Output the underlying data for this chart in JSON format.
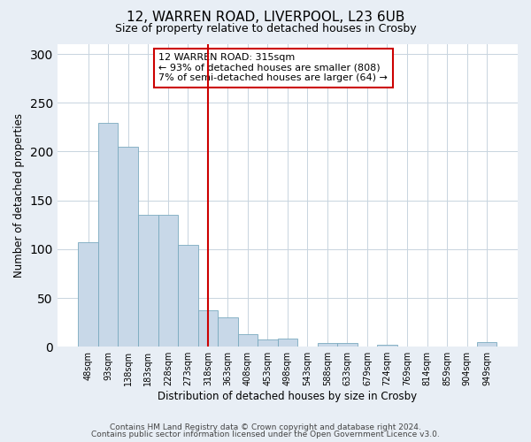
{
  "title1": "12, WARREN ROAD, LIVERPOOL, L23 6UB",
  "title2": "Size of property relative to detached houses in Crosby",
  "xlabel": "Distribution of detached houses by size in Crosby",
  "ylabel": "Number of detached properties",
  "categories": [
    "48sqm",
    "93sqm",
    "138sqm",
    "183sqm",
    "228sqm",
    "273sqm",
    "318sqm",
    "363sqm",
    "408sqm",
    "453sqm",
    "498sqm",
    "543sqm",
    "588sqm",
    "633sqm",
    "679sqm",
    "724sqm",
    "769sqm",
    "814sqm",
    "859sqm",
    "904sqm",
    "949sqm"
  ],
  "values": [
    107,
    229,
    205,
    135,
    135,
    104,
    37,
    30,
    13,
    7,
    8,
    0,
    4,
    4,
    0,
    2,
    0,
    0,
    0,
    0,
    5
  ],
  "bar_color": "#c8d8e8",
  "bar_edge_color": "#7aaabf",
  "vline_x": 6.0,
  "vline_color": "#cc0000",
  "annotation_text": "12 WARREN ROAD: 315sqm\n← 93% of detached houses are smaller (808)\n7% of semi-detached houses are larger (64) →",
  "annotation_box_color": "#cc0000",
  "ylim": [
    0,
    310
  ],
  "yticks": [
    0,
    50,
    100,
    150,
    200,
    250,
    300
  ],
  "footer1": "Contains HM Land Registry data © Crown copyright and database right 2024.",
  "footer2": "Contains public sector information licensed under the Open Government Licence v3.0.",
  "bg_color": "#e8eef5",
  "plot_bg_color": "#ffffff"
}
